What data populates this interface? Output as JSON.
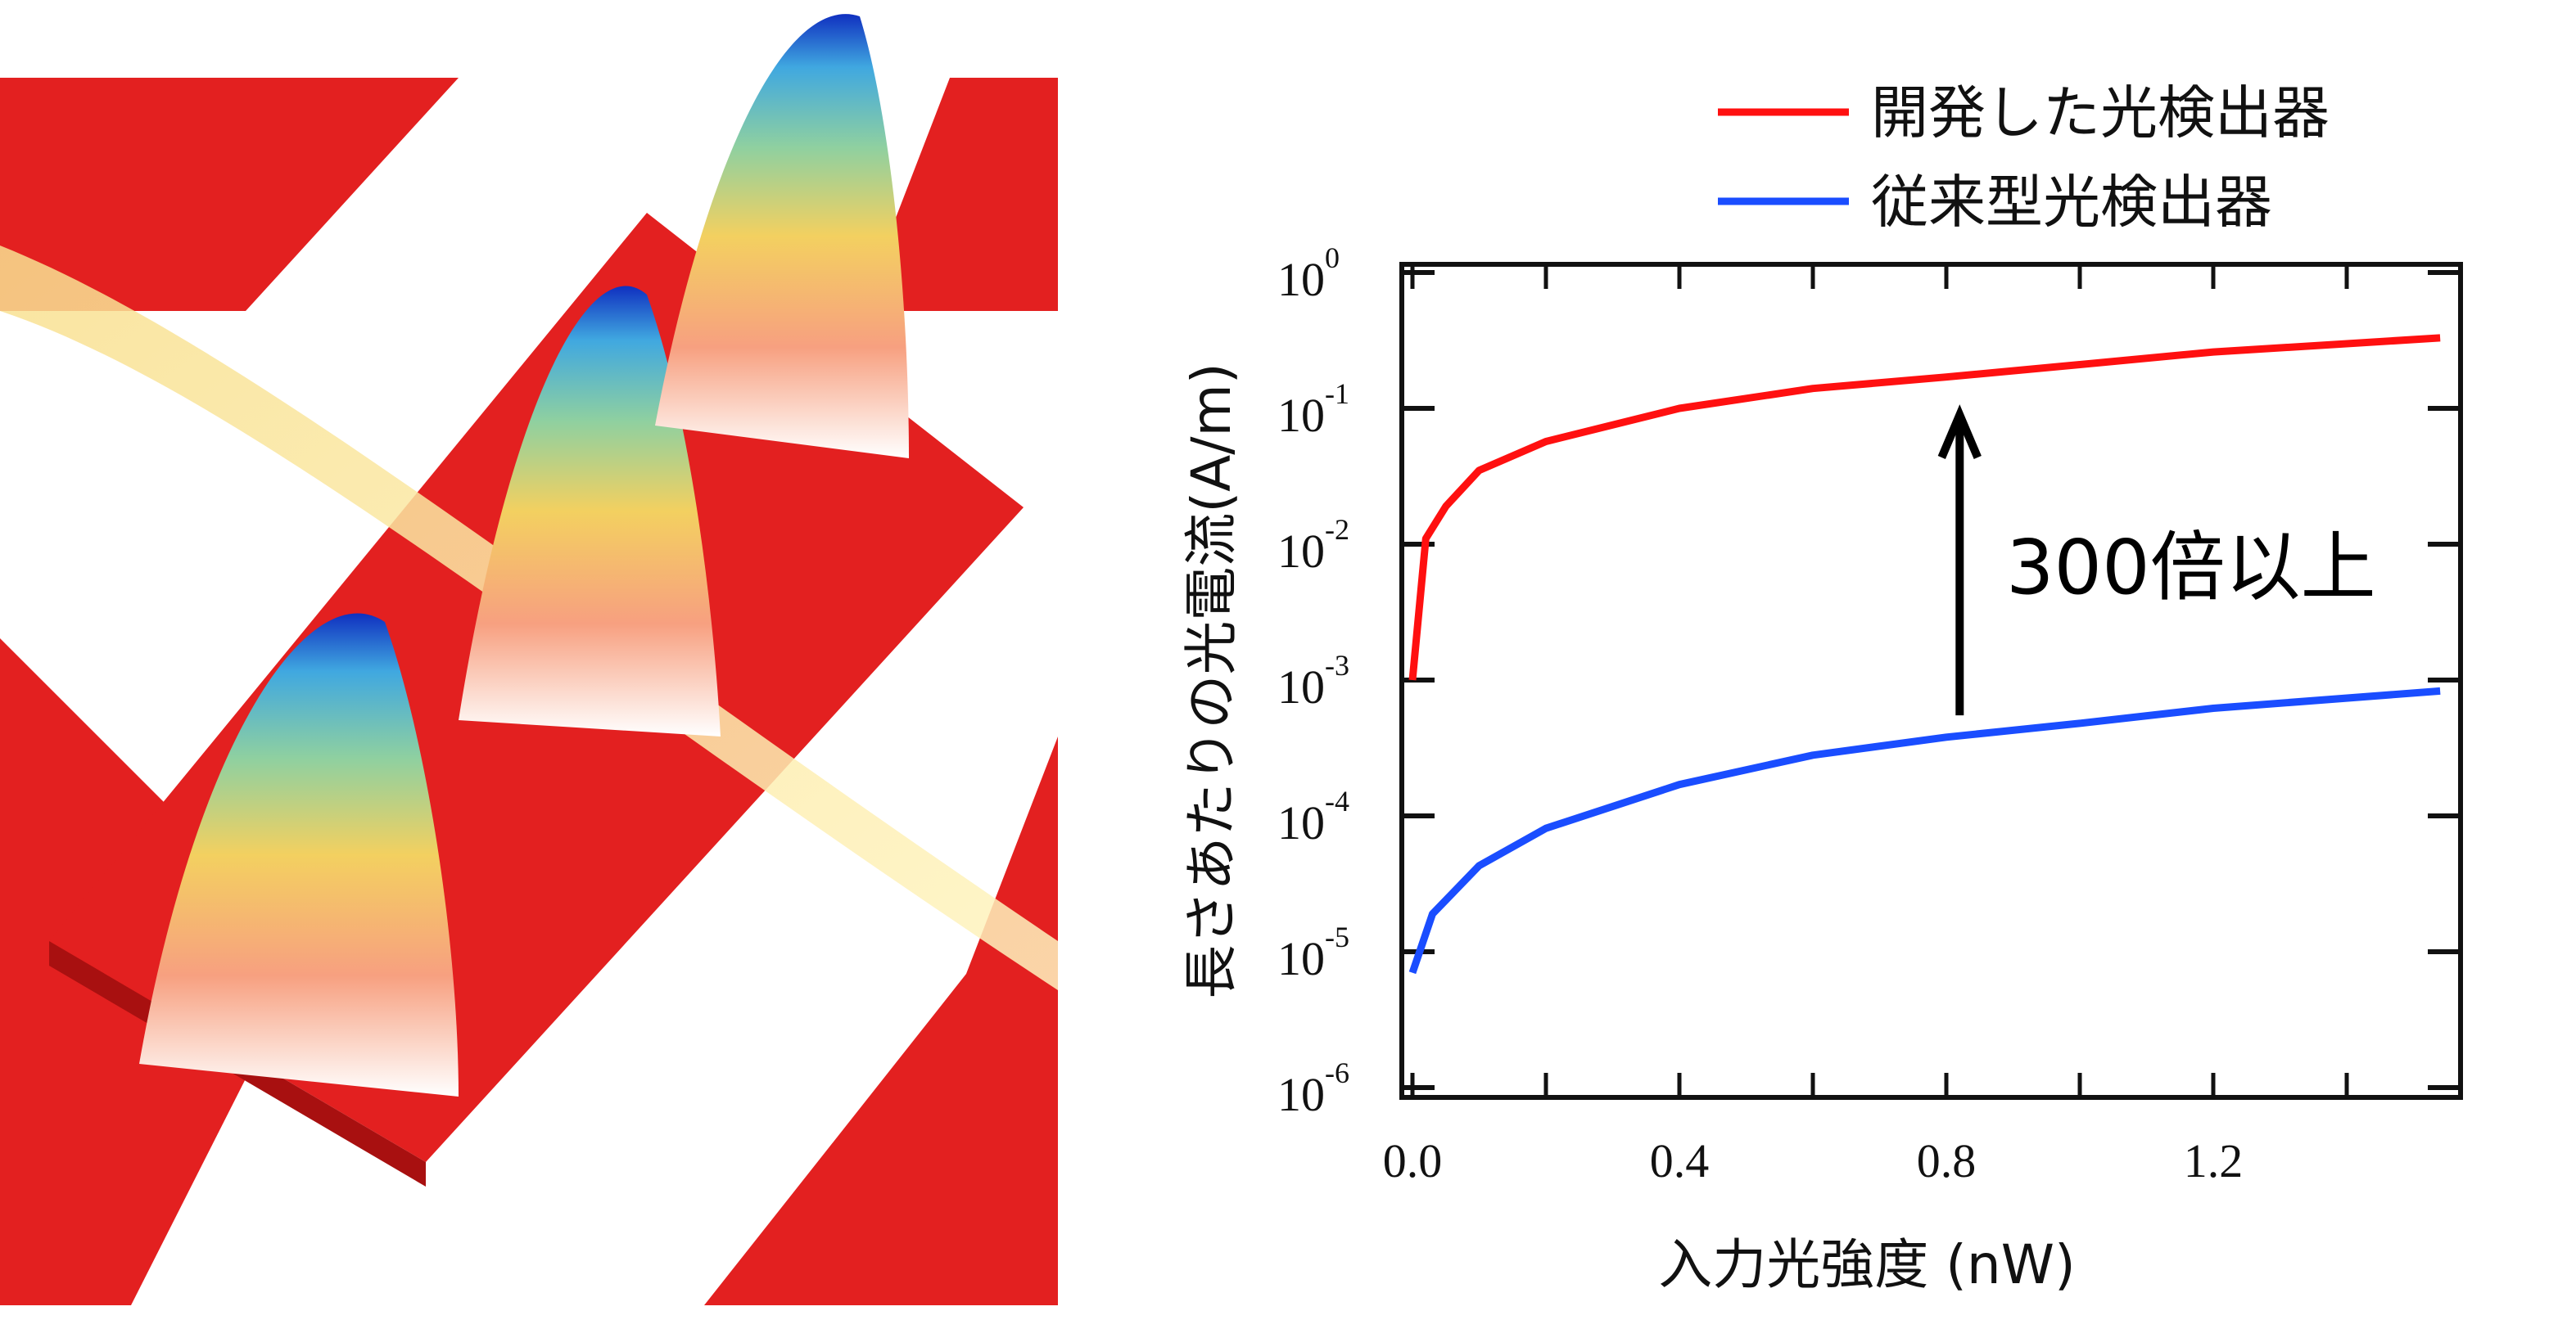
{
  "chart_data": {
    "type": "line",
    "xlabel": "入力光強度 (nW)",
    "ylabel": "長さあたりの光電流(A/m)",
    "xlim": [
      -0.02,
      1.57
    ],
    "ylim": [
      1e-06,
      1
    ],
    "yscale": "log",
    "grid": false,
    "legend_position": "top-right",
    "xticks": [
      {
        "value": 0.0,
        "label": "0.0"
      },
      {
        "value": 0.4,
        "label": "0.4"
      },
      {
        "value": 0.8,
        "label": "0.8"
      },
      {
        "value": 1.2,
        "label": "1.2"
      }
    ],
    "yticks": [
      {
        "value": 1,
        "base": "10",
        "exp": "0"
      },
      {
        "value": 0.1,
        "base": "10",
        "exp": "-1"
      },
      {
        "value": 0.01,
        "base": "10",
        "exp": "-2"
      },
      {
        "value": 0.001,
        "base": "10",
        "exp": "-3"
      },
      {
        "value": 0.0001,
        "base": "10",
        "exp": "-4"
      },
      {
        "value": 1e-05,
        "base": "10",
        "exp": "-5"
      },
      {
        "value": 1e-06,
        "base": "10",
        "exp": "-6"
      }
    ],
    "series": [
      {
        "name": "開発した光検出器",
        "color": "#ff1010",
        "x": [
          0.0,
          0.02,
          0.05,
          0.1,
          0.2,
          0.4,
          0.6,
          0.8,
          1.0,
          1.2,
          1.54
        ],
        "y": [
          0.001,
          0.011,
          0.019,
          0.035,
          0.057,
          0.1,
          0.14,
          0.17,
          0.21,
          0.26,
          0.33
        ]
      },
      {
        "name": "従来型光検出器",
        "color": "#1a4dff",
        "x": [
          0.0,
          0.03,
          0.1,
          0.2,
          0.4,
          0.6,
          0.8,
          1.0,
          1.2,
          1.54
        ],
        "y": [
          7e-06,
          1.9e-05,
          4.3e-05,
          8.1e-05,
          0.00017,
          0.00028,
          0.00038,
          0.00048,
          0.00062,
          0.00083
        ]
      }
    ],
    "annotation": {
      "text": "300倍以上",
      "arrow": "up",
      "x": 0.82,
      "from": 0.00055,
      "to": 0.1
    }
  }
}
